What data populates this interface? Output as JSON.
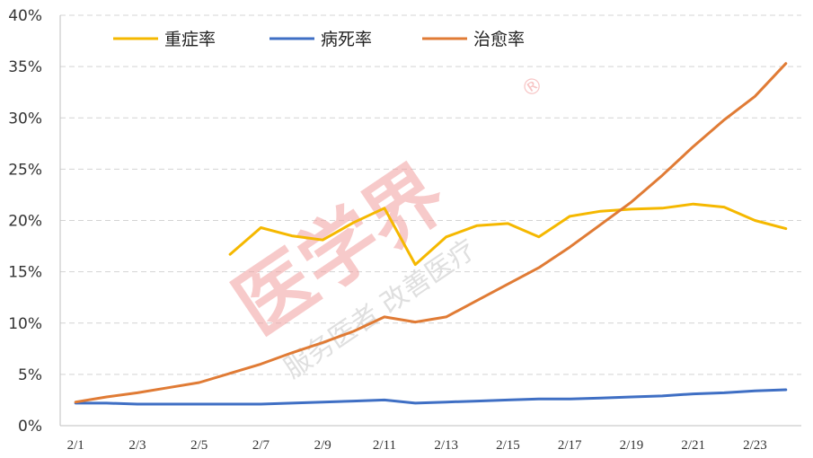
{
  "watermark": {
    "logo_text": "医学界",
    "registered": "®",
    "slogan": "服务医者 改善医疗"
  },
  "chart_data": {
    "type": "line",
    "x": [
      "2/1",
      "2/2",
      "2/3",
      "2/4",
      "2/5",
      "2/6",
      "2/7",
      "2/8",
      "2/9",
      "2/10",
      "2/11",
      "2/12",
      "2/13",
      "2/14",
      "2/15",
      "2/16",
      "2/17",
      "2/18",
      "2/19",
      "2/20",
      "2/21",
      "2/22",
      "2/23",
      "2/24"
    ],
    "x_tick_labels": [
      "2/1",
      "2/3",
      "2/5",
      "2/7",
      "2/9",
      "2/11",
      "2/13",
      "2/15",
      "2/17",
      "2/19",
      "2/21",
      "2/23"
    ],
    "y_ticks": [
      "0%",
      "5%",
      "10%",
      "15%",
      "20%",
      "25%",
      "30%",
      "35%",
      "40%"
    ],
    "ylim": [
      0,
      40
    ],
    "grid": "horizontal dashed",
    "legend_position": "top",
    "series": [
      {
        "name": "重症率",
        "color": "#f5b800",
        "values": [
          null,
          null,
          null,
          null,
          null,
          16.7,
          19.3,
          18.5,
          18.1,
          19.8,
          21.2,
          15.7,
          18.4,
          19.5,
          19.7,
          18.4,
          20.4,
          20.9,
          21.1,
          21.2,
          21.6,
          21.3,
          20.0,
          19.2
        ]
      },
      {
        "name": "病死率",
        "color": "#3f6fc4",
        "values": [
          2.2,
          2.2,
          2.1,
          2.1,
          2.1,
          2.1,
          2.1,
          2.2,
          2.3,
          2.4,
          2.5,
          2.2,
          2.3,
          2.4,
          2.5,
          2.6,
          2.6,
          2.7,
          2.8,
          2.9,
          3.1,
          3.2,
          3.4,
          3.5
        ]
      },
      {
        "name": "治愈率",
        "color": "#e07b35",
        "values": [
          2.3,
          2.8,
          3.2,
          3.7,
          4.2,
          5.1,
          6.0,
          7.1,
          8.1,
          9.2,
          10.6,
          10.1,
          10.6,
          12.2,
          13.8,
          15.4,
          17.4,
          19.6,
          21.8,
          24.4,
          27.2,
          29.8,
          32.1,
          35.3
        ]
      }
    ]
  }
}
